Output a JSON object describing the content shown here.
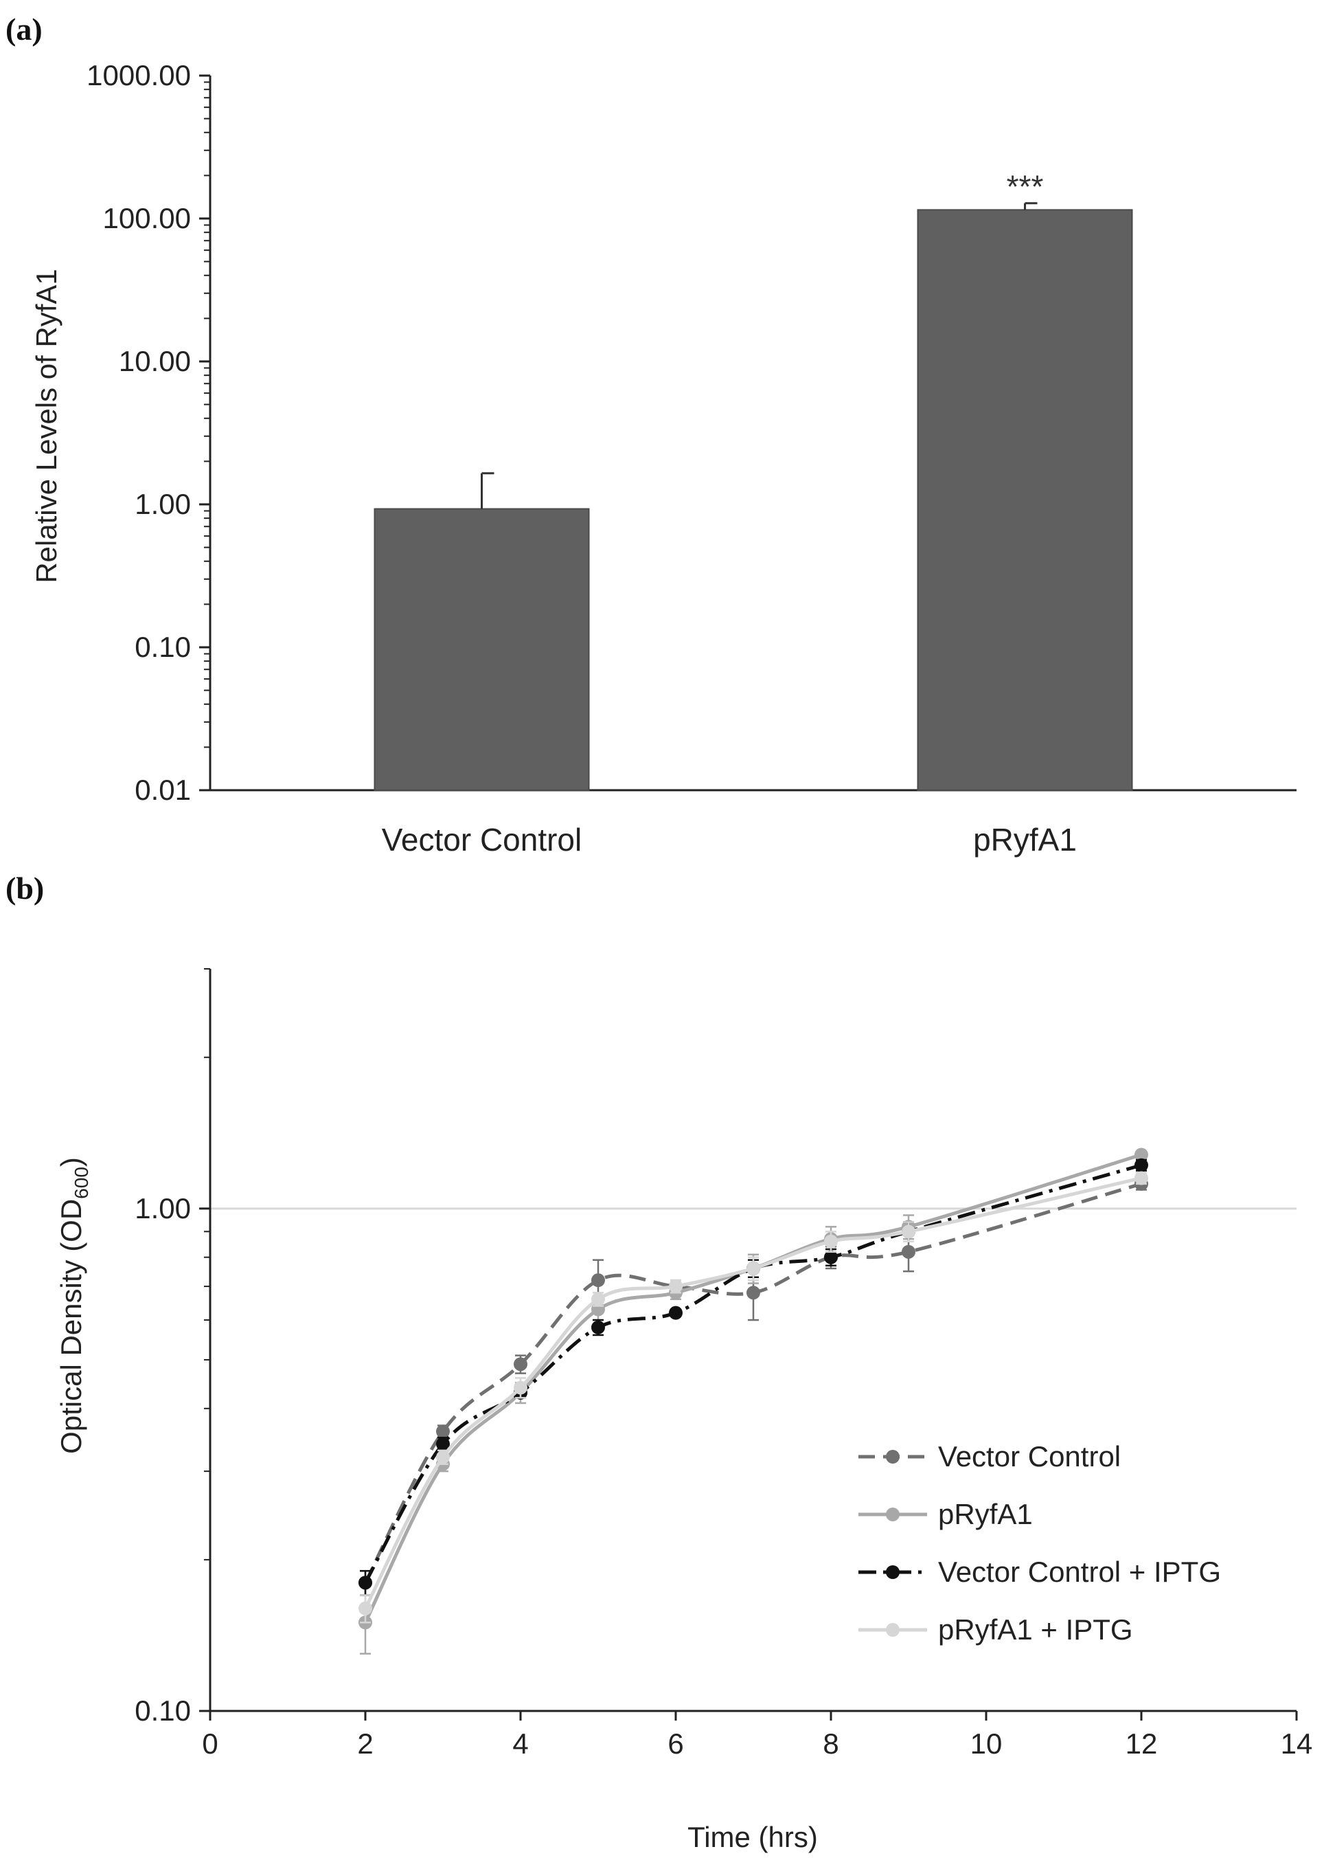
{
  "chart_data": [
    {
      "panel": "(a)",
      "type": "bar",
      "ylabel": "Relative Levels of RyfA1",
      "yscale": "log",
      "ylim": [
        0.01,
        1000
      ],
      "yticks": [
        "0.01",
        "0.10",
        "1.00",
        "10.00",
        "100.00",
        "1000.00"
      ],
      "categories": [
        "Vector Control",
        "pRyfA1"
      ],
      "values": [
        0.93,
        115
      ],
      "error_upper": [
        1.65,
        128
      ],
      "annotations": [
        {
          "category": "pRyfA1",
          "text": "***"
        }
      ],
      "bar_color": "#606060"
    },
    {
      "panel": "(b)",
      "type": "line",
      "xlabel": "Time (hrs)",
      "ylabel_main": "Optical Density (OD",
      "ylabel_sub": "600",
      "ylabel_end": ")",
      "yscale": "log",
      "ylim": [
        0.1,
        3
      ],
      "yticks": [
        "0.10",
        "1.00"
      ],
      "xlim": [
        0,
        14
      ],
      "xticks": [
        "0",
        "2",
        "4",
        "6",
        "8",
        "10",
        "12",
        "14"
      ],
      "legend_position": "lower-right",
      "series": [
        {
          "name": "Vector Control",
          "color": "#707070",
          "dash": "24,12",
          "x": [
            2,
            3,
            4,
            5,
            6,
            7,
            8,
            9,
            12
          ],
          "y": [
            0.18,
            0.36,
            0.49,
            0.72,
            0.7,
            0.68,
            0.8,
            0.82,
            1.12
          ],
          "err": [
            0.01,
            0.01,
            0.02,
            0.07,
            0.02,
            0.08,
            0.04,
            0.07,
            0.03
          ]
        },
        {
          "name": "pRyfA1",
          "color": "#a8a8a8",
          "dash": "",
          "x": [
            2,
            3,
            4,
            5,
            6,
            7,
            8,
            9,
            12
          ],
          "y": [
            0.15,
            0.31,
            0.43,
            0.63,
            0.68,
            0.76,
            0.87,
            0.92,
            1.28
          ],
          "err": [
            0.02,
            0.01,
            0.02,
            0.03,
            0.02,
            0.05,
            0.05,
            0.05,
            0.02
          ]
        },
        {
          "name": "Vector Control + IPTG",
          "color": "#111111",
          "dash": "26,10,5,10",
          "x": [
            2,
            3,
            4,
            5,
            6,
            7,
            8,
            9,
            12
          ],
          "y": [
            0.18,
            0.34,
            0.43,
            0.58,
            0.62,
            0.76,
            0.8,
            0.9,
            1.22
          ],
          "err": [
            0.01,
            0.01,
            0.01,
            0.02,
            0.01,
            0.03,
            0.03,
            0.04,
            0.03
          ]
        },
        {
          "name": "pRyfA1 + IPTG",
          "color": "#d6d6d6",
          "dash": "",
          "x": [
            2,
            3,
            4,
            5,
            6,
            7,
            8,
            9,
            12
          ],
          "y": [
            0.16,
            0.32,
            0.44,
            0.66,
            0.7,
            0.76,
            0.86,
            0.9,
            1.15
          ],
          "err": [
            0.01,
            0.01,
            0.02,
            0.02,
            0.02,
            0.04,
            0.04,
            0.04,
            0.03
          ]
        }
      ],
      "reference_line": {
        "y": 1.0,
        "color": "#d9d9d9"
      }
    }
  ]
}
